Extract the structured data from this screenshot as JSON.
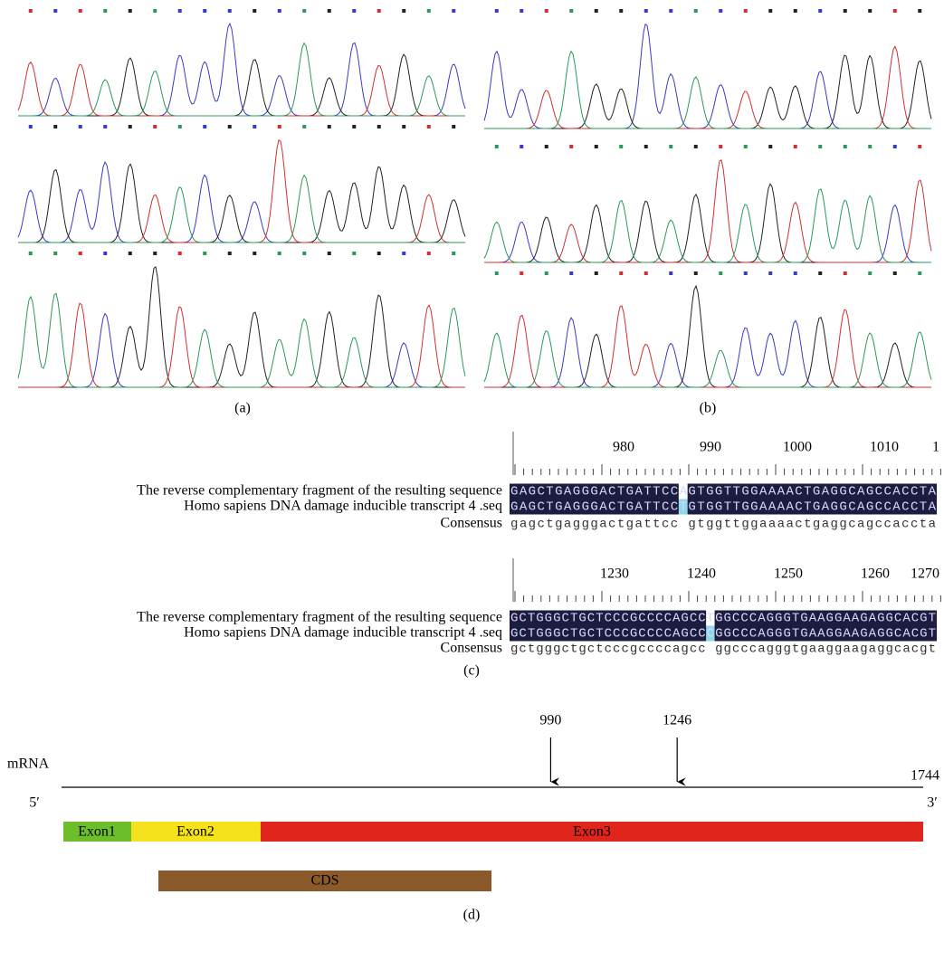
{
  "panels": {
    "a": {
      "caption": "(a)"
    },
    "b": {
      "caption": "(b)"
    }
  },
  "alignment": {
    "caption": "(c)",
    "blocks": [
      {
        "ruler": [
          980,
          990,
          1000,
          1010,
          1
        ],
        "rows": [
          {
            "label": "The reverse complementary fragment of the resulting sequence",
            "sequence": "GAGCTGAGGGACTGATTCCAGTGGTTGGAAAACTGAGGCAGCCACCTA"
          },
          {
            "label": "Homo sapiens DNA damage inducible transcript 4 .seq",
            "sequence": "GAGCTGAGGGACTGATTCCTGTGGTTGGAAAACTGAGGCAGCCACCTA"
          },
          {
            "label": "Consensus",
            "sequence": "gagctgagggactgattcc gtggttggaaaactgaggcagccaccta"
          }
        ]
      },
      {
        "ruler": [
          1230,
          1240,
          1250,
          1260,
          1270
        ],
        "rows": [
          {
            "label": "The reverse complementary fragment of the resulting sequence",
            "sequence": "GCTGGGCTGCTCCCGCCCCAGCCTGGCCCAGGGTGAAGGAAGAGGCACGT"
          },
          {
            "label": "Homo sapiens DNA damage inducible transcript 4 .seq",
            "sequence": "GCTGGGCTGCTCCCGCCCCAGCCCGGCCCAGGGTGAAGGAAGAGGCACGT"
          },
          {
            "label": "Consensus",
            "sequence": "gctgggctgctcccgccccagcc ggcccagggtgaaggaagaggcacgt"
          }
        ]
      }
    ]
  },
  "diagram": {
    "caption": "(d)",
    "molecule": "mRNA",
    "length": 1744,
    "five_prime": "5′",
    "three_prime": "3′",
    "markers": [
      990,
      1246
    ],
    "exons": [
      "Exon1",
      "Exon2",
      "Exon3"
    ],
    "cds": "CDS"
  }
}
